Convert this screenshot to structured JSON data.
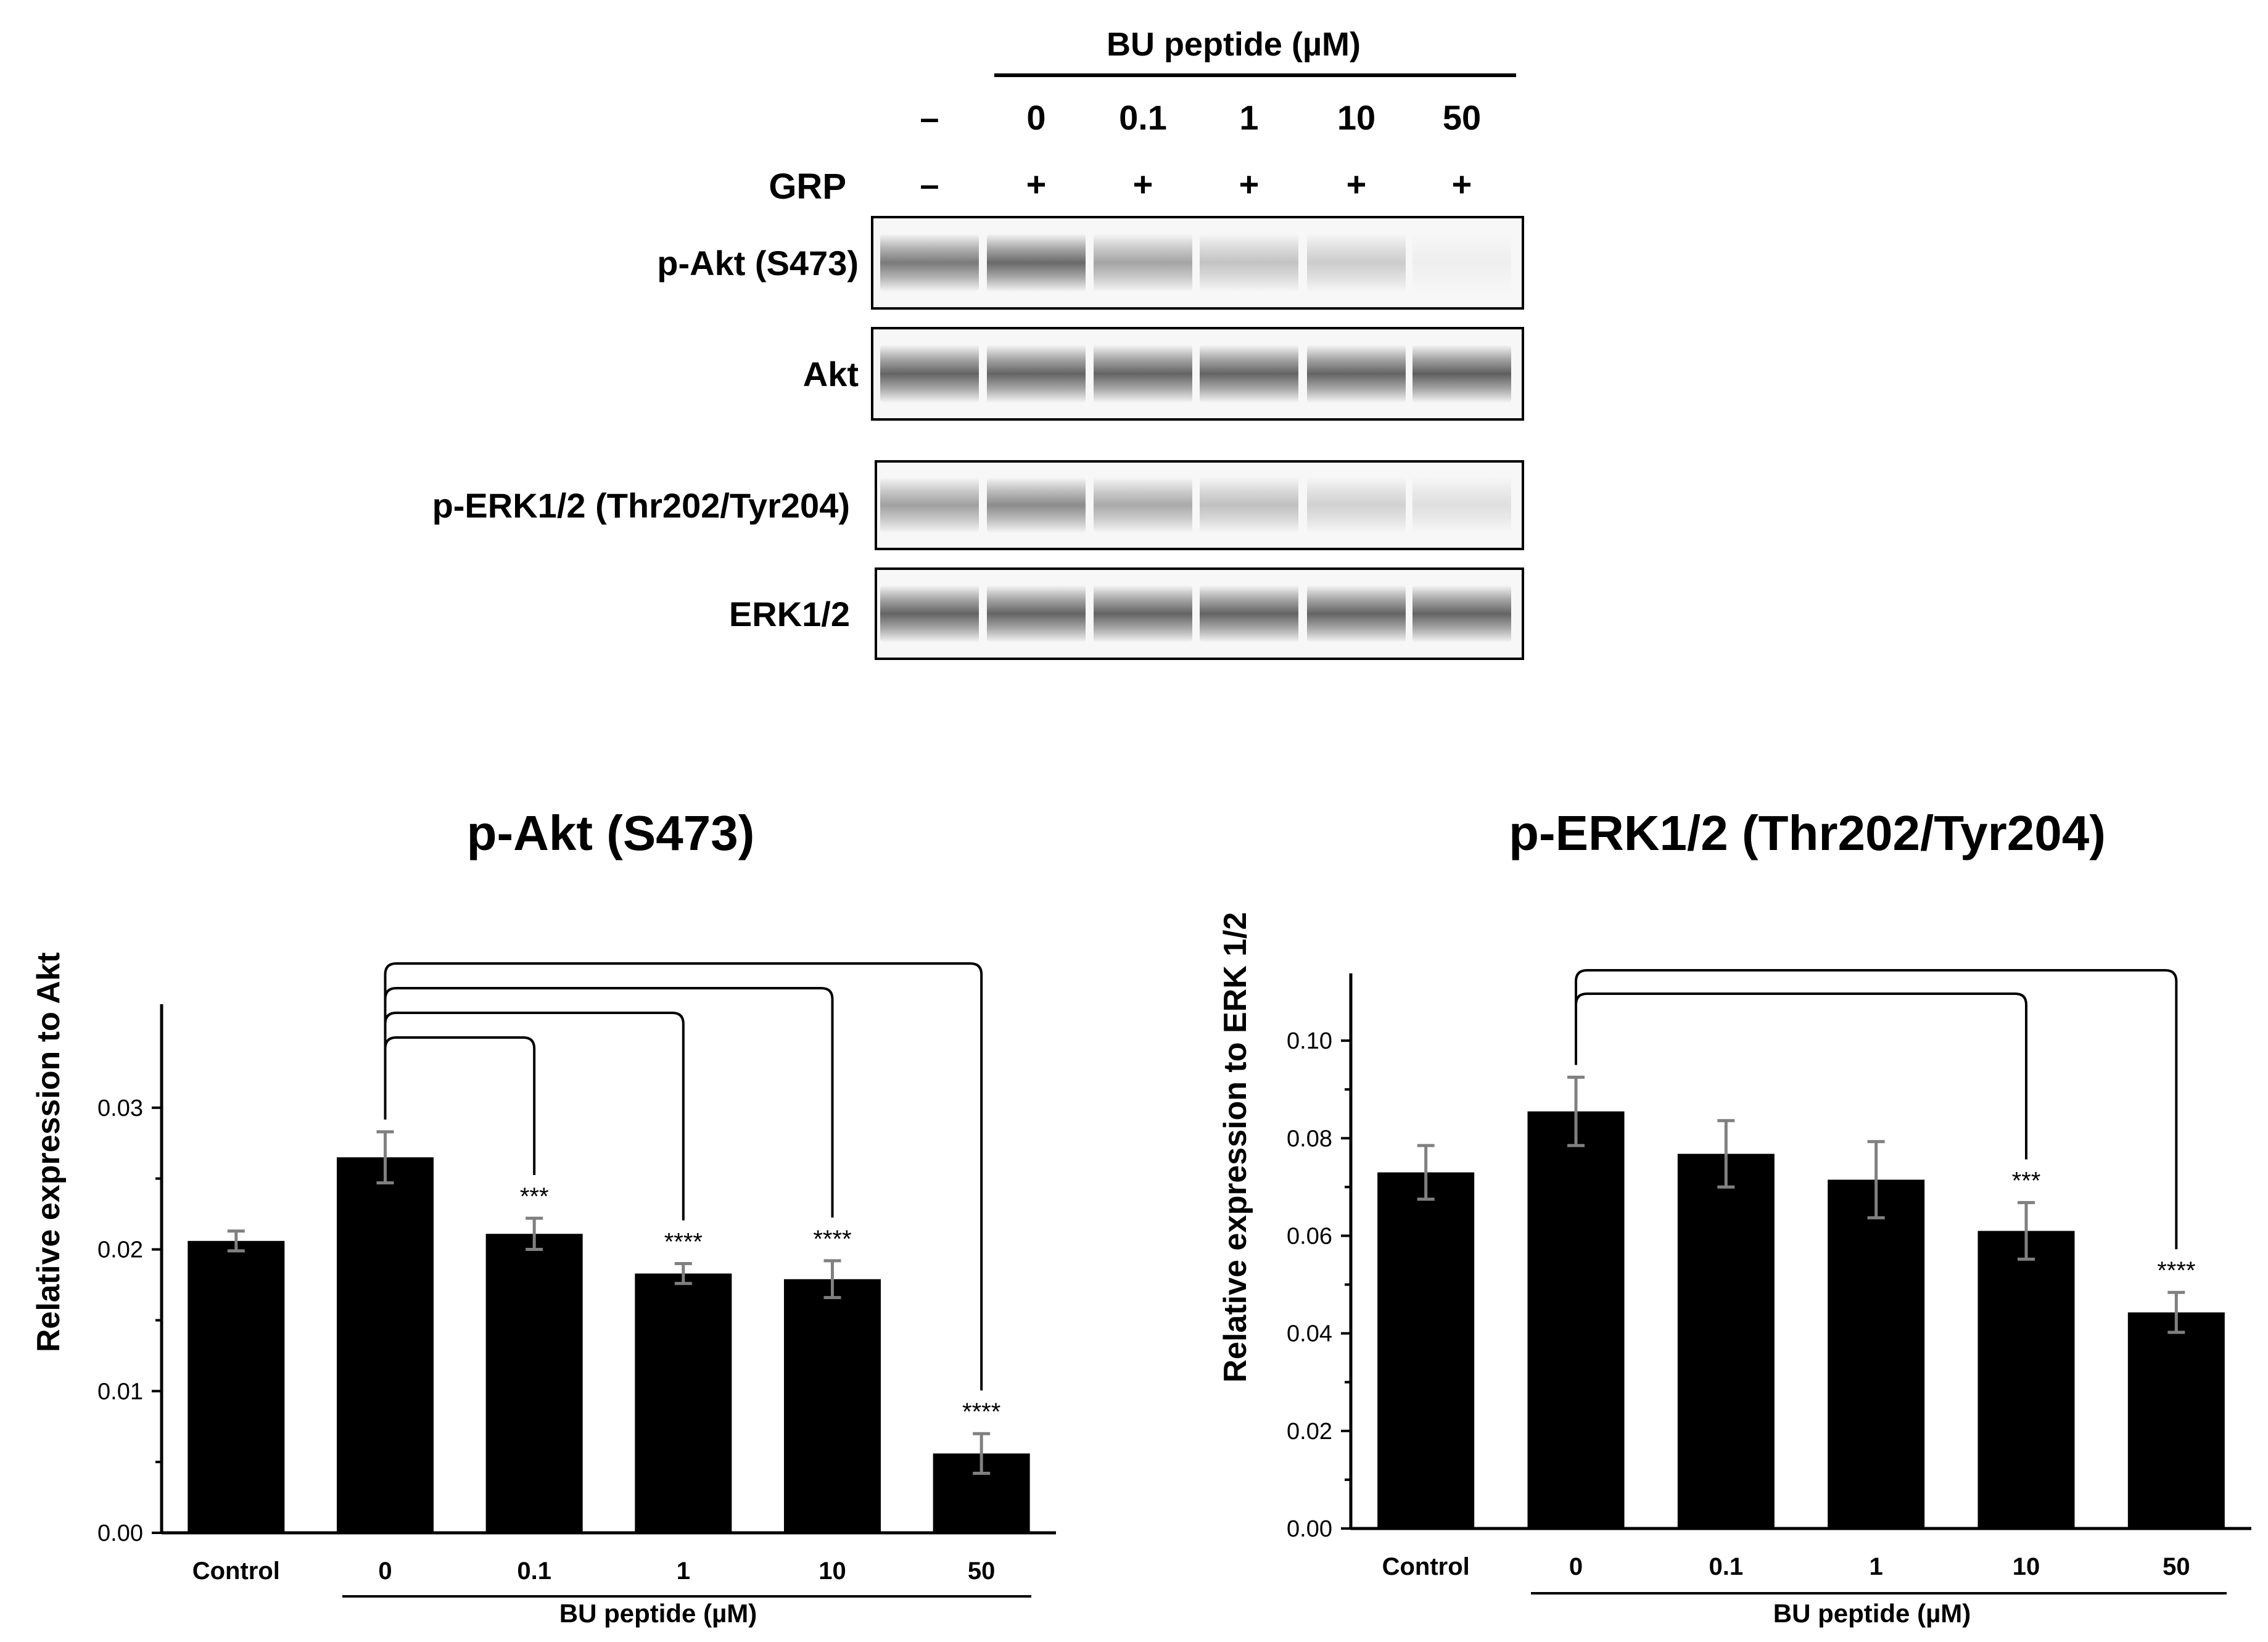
{
  "blot": {
    "header": "BU peptide (µM)",
    "doses": [
      "–",
      "0",
      "0.1",
      "1",
      "10",
      "50"
    ],
    "grp_label": "GRP",
    "grp": [
      "–",
      "+",
      "+",
      "+",
      "+",
      "+"
    ],
    "rows": [
      {
        "label": "p-Akt (S473)",
        "intensity": [
          0.72,
          0.82,
          0.48,
          0.3,
          0.25,
          0.05
        ]
      },
      {
        "label": "Akt",
        "intensity": [
          0.85,
          0.85,
          0.85,
          0.85,
          0.85,
          0.88
        ]
      },
      {
        "label": "p-ERK1/2 (Thr202/Tyr204)",
        "intensity": [
          0.5,
          0.62,
          0.45,
          0.32,
          0.22,
          0.14
        ]
      },
      {
        "label": "ERK1/2",
        "intensity": [
          0.85,
          0.85,
          0.85,
          0.85,
          0.85,
          0.85
        ]
      }
    ]
  },
  "chart_data": [
    {
      "type": "bar",
      "title": "p-Akt (S473)",
      "ylabel": "Relative expression to Akt",
      "xlabel": "BU peptide (µM)",
      "categories": [
        "Control",
        "0",
        "0.1",
        "1",
        "10",
        "50"
      ],
      "values": [
        0.0206,
        0.0265,
        0.0211,
        0.0183,
        0.0179,
        0.0056
      ],
      "errors": [
        0.0007,
        0.0018,
        0.0011,
        0.0007,
        0.0013,
        0.0014
      ],
      "ylim": [
        0,
        0.036
      ],
      "yticks": [
        0.0,
        0.01,
        0.02,
        0.03
      ],
      "ytick_labels": [
        "0.00",
        "0.01",
        "0.02",
        "0.03"
      ],
      "significance": [
        "",
        "",
        "***",
        "****",
        "****",
        "****"
      ],
      "comparison_reference": 1,
      "comparisons": [
        2,
        3,
        4,
        5
      ],
      "bar_color": "#000000",
      "error_color": "#808080"
    },
    {
      "type": "bar",
      "title": "p-ERK1/2 (Thr202/Tyr204)",
      "ylabel": "Relative expression to ERK 1/2",
      "xlabel": "BU peptide (µM)",
      "categories": [
        "Control",
        "0",
        "0.1",
        "1",
        "10",
        "50"
      ],
      "values": [
        0.073,
        0.0855,
        0.0768,
        0.0715,
        0.061,
        0.0443
      ],
      "errors": [
        0.0055,
        0.007,
        0.0068,
        0.0078,
        0.0058,
        0.0041
      ],
      "ylim": [
        0,
        0.11
      ],
      "yticks": [
        0.0,
        0.02,
        0.04,
        0.06,
        0.08,
        0.1
      ],
      "ytick_labels": [
        "0.00",
        "0.02",
        "0.04",
        "0.06",
        "0.08",
        "0.10"
      ],
      "significance": [
        "",
        "",
        "",
        "",
        "***",
        "****"
      ],
      "comparison_reference": 1,
      "comparisons": [
        4,
        5
      ],
      "bar_color": "#000000",
      "error_color": "#808080"
    }
  ]
}
